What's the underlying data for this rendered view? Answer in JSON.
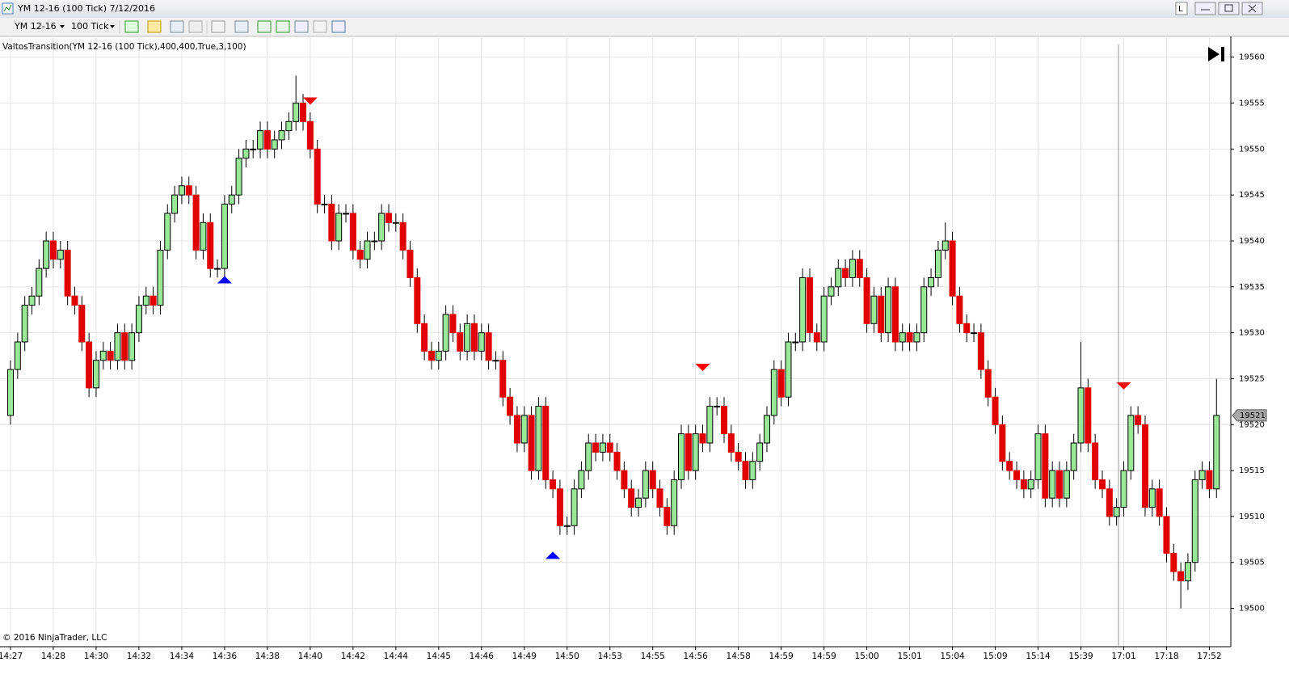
{
  "window": {
    "title": "YM 12-16 (100 Tick)  7/12/2016",
    "instrument": "YM 12-16",
    "period": "100 Tick"
  },
  "chart_data": {
    "type": "candlestick",
    "indicator": "ValtosTransition(YM 12-16 (100 Tick),400,400,True,3,100)",
    "copyright": "© 2016 NinjaTrader, LLC",
    "categories": [
      "14:27",
      null,
      null,
      null,
      null,
      null,
      "14:28",
      null,
      null,
      null,
      null,
      null,
      "14:30",
      null,
      null,
      null,
      null,
      null,
      "14:32",
      null,
      null,
      null,
      null,
      null,
      "14:34",
      null,
      null,
      null,
      null,
      null,
      "14:36",
      null,
      null,
      null,
      null,
      null,
      "14:38",
      null,
      null,
      null,
      null,
      null,
      "14:40",
      null,
      null,
      null,
      null,
      null,
      "14:42",
      null,
      null,
      null,
      null,
      null,
      "14:44",
      null,
      null,
      null,
      null,
      null,
      "14:45",
      null,
      null,
      null,
      null,
      null,
      "14:46",
      null,
      null,
      null,
      null,
      null,
      "14:49",
      null,
      null,
      null,
      null,
      null,
      "14:50",
      null,
      null,
      null,
      null,
      null,
      "14:53",
      null,
      null,
      null,
      null,
      null,
      "14:55",
      null,
      null,
      null,
      null,
      null,
      "14:56",
      null,
      null,
      null,
      null,
      null,
      "14:58",
      null,
      null,
      null,
      null,
      null,
      "14:59",
      null,
      null,
      null,
      null,
      null,
      "14:59",
      null,
      null,
      null,
      null,
      null,
      "15:00",
      null,
      null,
      null,
      null,
      null,
      "15:01",
      null,
      null,
      null,
      null,
      null,
      "15:04",
      null,
      null,
      null,
      null,
      null,
      "15:09",
      null,
      null,
      null,
      null,
      null,
      "15:14",
      null,
      null,
      null,
      null,
      null,
      "15:39",
      null,
      null,
      null,
      null,
      null,
      "17:01",
      null,
      null,
      null,
      null,
      null,
      "17:18",
      null,
      null,
      null,
      null,
      null,
      "17:52",
      null
    ],
    "open": [
      19521,
      19526,
      19529,
      19533,
      19534,
      19537,
      19540,
      19538,
      19539,
      19534,
      19533,
      19529,
      19524,
      19527,
      19528,
      19527,
      19530,
      19527,
      19530,
      19533,
      19534,
      19533,
      19539,
      19543,
      19545,
      19546,
      19545,
      19539,
      19542,
      19537,
      19537,
      19544,
      19545,
      19549,
      19550,
      19550,
      19552,
      19550,
      19551,
      19552,
      19553,
      19555,
      19553,
      19550,
      19544,
      19544,
      19540,
      19543,
      19543,
      19539,
      19538,
      19540,
      19540,
      19543,
      19542,
      19542,
      19539,
      19536,
      19531,
      19528,
      19527,
      19528,
      19532,
      19530,
      19528,
      19531,
      19528,
      19530,
      19527,
      19527,
      19523,
      19521,
      19518,
      19521,
      19515,
      19522,
      19514,
      19513,
      19509,
      19509,
      19513,
      19515,
      19518,
      19517,
      19518,
      19517,
      19515,
      19513,
      19511,
      19512,
      19515,
      19513,
      19511,
      19509,
      19514,
      19519,
      19515,
      19519,
      19518,
      19522,
      19522,
      19519,
      19517,
      19516,
      19514,
      19516,
      19518,
      19521,
      19526,
      19523,
      19529,
      19529,
      19536,
      19530,
      19529,
      19534,
      19535,
      19537,
      19536,
      19538,
      19536,
      19531,
      19534,
      19530,
      19535,
      19529,
      19530,
      19529,
      19530,
      19535,
      19536,
      19539,
      19540,
      19534,
      19531,
      19530,
      19530,
      19526,
      19523,
      19520,
      19516,
      19515,
      19514,
      19513,
      19514,
      19519,
      19512,
      19515,
      19512,
      19515,
      19518,
      19524,
      19518,
      19514,
      19513,
      19510,
      19511,
      19515,
      19521,
      19520,
      19511,
      19513,
      19510,
      19506,
      19504,
      19503,
      19505,
      19514,
      19515,
      19513
    ],
    "high": [
      19527,
      19530,
      19534,
      19535,
      19538,
      19541,
      19541,
      19540,
      19540,
      19535,
      19534,
      19530,
      19528,
      19529,
      19529,
      19531,
      19531,
      19531,
      19534,
      19535,
      19535,
      19540,
      19544,
      19546,
      19547,
      19547,
      19546,
      19543,
      19543,
      19538,
      19545,
      19546,
      19550,
      19551,
      19551,
      19553,
      19553,
      19552,
      19553,
      19554,
      19558,
      19556,
      19554,
      19551,
      19545,
      19545,
      19544,
      19544,
      19544,
      19540,
      19541,
      19541,
      19544,
      19544,
      19543,
      19543,
      19540,
      19537,
      19532,
      19529,
      19529,
      19533,
      19533,
      19531,
      19532,
      19532,
      19531,
      19531,
      19528,
      19528,
      19524,
      19522,
      19522,
      19522,
      19523,
      19523,
      19515,
      19514,
      19510,
      19514,
      19516,
      19519,
      19519,
      19519,
      19519,
      19518,
      19516,
      19514,
      19513,
      19516,
      19516,
      19514,
      19512,
      19515,
      19520,
      19520,
      19520,
      19520,
      19523,
      19523,
      19523,
      19520,
      19518,
      19517,
      19517,
      19519,
      19522,
      19527,
      19527,
      19530,
      19530,
      19537,
      19537,
      19531,
      19535,
      19536,
      19538,
      19538,
      19539,
      19539,
      19537,
      19535,
      19535,
      19536,
      19536,
      19531,
      19531,
      19531,
      19536,
      19537,
      19540,
      19542,
      19541,
      19535,
      19532,
      19531,
      19531,
      19527,
      19524,
      19521,
      19517,
      19516,
      19515,
      19515,
      19520,
      19520,
      19516,
      19516,
      19516,
      19519,
      19529,
      19525,
      19519,
      19515,
      19514,
      19512,
      19516,
      19522,
      19522,
      19521,
      19514,
      19514,
      19511,
      19507,
      19505,
      19506,
      19515,
      19516,
      19516,
      19525
    ],
    "low": [
      19520,
      19525,
      19528,
      19532,
      19533,
      19536,
      19537,
      19537,
      19533,
      19532,
      19528,
      19523,
      19523,
      19526,
      19526,
      19526,
      19526,
      19526,
      19529,
      19532,
      19532,
      19532,
      19538,
      19542,
      19544,
      19544,
      19538,
      19538,
      19536,
      19536,
      19536,
      19543,
      19544,
      19548,
      19549,
      19549,
      19549,
      19549,
      19550,
      19551,
      19552,
      19552,
      19549,
      19543,
      19543,
      19539,
      19539,
      19542,
      19538,
      19537,
      19537,
      19539,
      19539,
      19541,
      19541,
      19538,
      19535,
      19530,
      19527,
      19526,
      19526,
      19527,
      19529,
      19527,
      19527,
      19527,
      19527,
      19526,
      19526,
      19522,
      19520,
      19517,
      19517,
      19514,
      19514,
      19513,
      19512,
      19508,
      19508,
      19508,
      19512,
      19514,
      19516,
      19516,
      19516,
      19514,
      19512,
      19510,
      19510,
      19511,
      19512,
      19510,
      19508,
      19508,
      19513,
      19514,
      19514,
      19517,
      19517,
      19521,
      19518,
      19516,
      19515,
      19513,
      19513,
      19515,
      19517,
      19520,
      19522,
      19522,
      19528,
      19528,
      19529,
      19528,
      19528,
      19533,
      19534,
      19535,
      19535,
      19535,
      19530,
      19530,
      19529,
      19529,
      19528,
      19528,
      19528,
      19528,
      19529,
      19534,
      19535,
      19538,
      19533,
      19530,
      19529,
      19529,
      19525,
      19522,
      19519,
      19515,
      19514,
      19513,
      19512,
      19512,
      19513,
      19511,
      19511,
      19511,
      19511,
      19514,
      19517,
      19517,
      19513,
      19512,
      19509,
      19509,
      19510,
      19514,
      19519,
      19510,
      19510,
      19509,
      19505,
      19503,
      19500,
      19502,
      19504,
      19513,
      19512,
      19512
    ],
    "close": [
      19526,
      19529,
      19533,
      19534,
      19537,
      19540,
      19538,
      19539,
      19534,
      19533,
      19529,
      19524,
      19527,
      19528,
      19527,
      19530,
      19527,
      19530,
      19533,
      19534,
      19533,
      19539,
      19543,
      19545,
      19546,
      19545,
      19539,
      19542,
      19537,
      19537,
      19544,
      19545,
      19549,
      19550,
      19550,
      19552,
      19550,
      19551,
      19552,
      19553,
      19555,
      19553,
      19550,
      19544,
      19544,
      19540,
      19543,
      19543,
      19539,
      19538,
      19540,
      19540,
      19543,
      19542,
      19542,
      19539,
      19536,
      19531,
      19528,
      19527,
      19528,
      19532,
      19530,
      19528,
      19531,
      19528,
      19530,
      19527,
      19527,
      19523,
      19521,
      19518,
      19521,
      19515,
      19522,
      19514,
      19513,
      19509,
      19509,
      19513,
      19515,
      19518,
      19517,
      19518,
      19517,
      19515,
      19513,
      19511,
      19512,
      19515,
      19513,
      19511,
      19509,
      19514,
      19519,
      19515,
      19519,
      19518,
      19522,
      19522,
      19519,
      19517,
      19516,
      19514,
      19516,
      19518,
      19521,
      19526,
      19523,
      19529,
      19529,
      19536,
      19530,
      19529,
      19534,
      19535,
      19537,
      19536,
      19538,
      19536,
      19531,
      19534,
      19530,
      19535,
      19529,
      19530,
      19529,
      19530,
      19535,
      19536,
      19539,
      19540,
      19534,
      19531,
      19530,
      19530,
      19526,
      19523,
      19520,
      19516,
      19515,
      19514,
      19513,
      19514,
      19519,
      19512,
      19515,
      19512,
      19515,
      19518,
      19524,
      19518,
      19514,
      19513,
      19510,
      19511,
      19515,
      19521,
      19520,
      19511,
      19513,
      19510,
      19506,
      19504,
      19503,
      19505,
      19514,
      19515,
      19513,
      19521
    ],
    "up_color": "#98e898",
    "down_color": "#e00000",
    "signals": [
      {
        "index": 30,
        "direction": "up",
        "value": 19536,
        "color": "#0000ff"
      },
      {
        "index": 42,
        "direction": "down",
        "value": 19555,
        "color": "#ff0000"
      },
      {
        "index": 76,
        "direction": "up",
        "value": 19506,
        "color": "#0000ff"
      },
      {
        "index": 97,
        "direction": "down",
        "value": 19526,
        "color": "#ff0000"
      },
      {
        "index": 156,
        "direction": "down",
        "value": 19524,
        "color": "#ff0000"
      }
    ],
    "last_price": 19521,
    "ylim": [
      19496,
      19562
    ],
    "yticks": [
      19500,
      19505,
      19510,
      19515,
      19520,
      19525,
      19530,
      19535,
      19540,
      19545,
      19550,
      19555,
      19560
    ],
    "grid": true
  }
}
